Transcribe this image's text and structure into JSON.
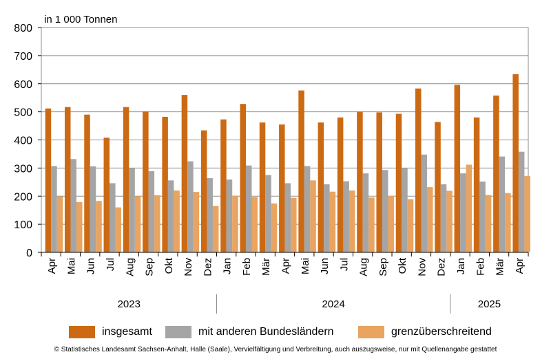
{
  "chart_data": {
    "type": "bar",
    "unit_label": "in 1 000 Tonnen",
    "ylim": [
      0,
      800
    ],
    "yticks": [
      0,
      100,
      200,
      300,
      400,
      500,
      600,
      700,
      800
    ],
    "grid": true,
    "categories": [
      "Apr",
      "Mai",
      "Jun",
      "Jul",
      "Aug",
      "Sep",
      "Okt",
      "Nov",
      "Dez",
      "Jan",
      "Feb",
      "Mär",
      "Apr",
      "Mai",
      "Jun",
      "Jul",
      "Aug",
      "Sep",
      "Okt",
      "Nov",
      "Dez",
      "Jan",
      "Feb",
      "Mär",
      "Apr"
    ],
    "year_groups": [
      {
        "label": "2023",
        "start": 0,
        "count": 9
      },
      {
        "label": "2024",
        "start": 9,
        "count": 12
      },
      {
        "label": "2025",
        "start": 21,
        "count": 4
      }
    ],
    "series": [
      {
        "name": "insgesamt",
        "color": "#cc6a14",
        "values": [
          512,
          517,
          490,
          408,
          517,
          502,
          482,
          560,
          434,
          473,
          528,
          462,
          455,
          576,
          462,
          480,
          501,
          498,
          493,
          583,
          464,
          596,
          480,
          558,
          634
        ]
      },
      {
        "name": "mit anderen Bundesländern",
        "color": "#a5a5a5",
        "values": [
          307,
          332,
          306,
          246,
          300,
          289,
          256,
          324,
          264,
          259,
          309,
          275,
          246,
          307,
          242,
          253,
          281,
          293,
          299,
          348,
          242,
          281,
          252,
          341,
          358
        ]
      },
      {
        "name": "grenzüberschreitend",
        "color": "#e8a460",
        "values": [
          199,
          179,
          183,
          160,
          200,
          203,
          220,
          215,
          165,
          202,
          197,
          174,
          194,
          256,
          216,
          220,
          195,
          201,
          189,
          232,
          219,
          312,
          204,
          211,
          272
        ]
      }
    ],
    "legend_position": "bottom"
  },
  "footer": "© Statistisches Landesamt Sachsen-Anhalt, Halle (Saale), Vervielfältigung und Verbreitung, auch auszugsweise, nur mit Quellenangabe gestattet"
}
